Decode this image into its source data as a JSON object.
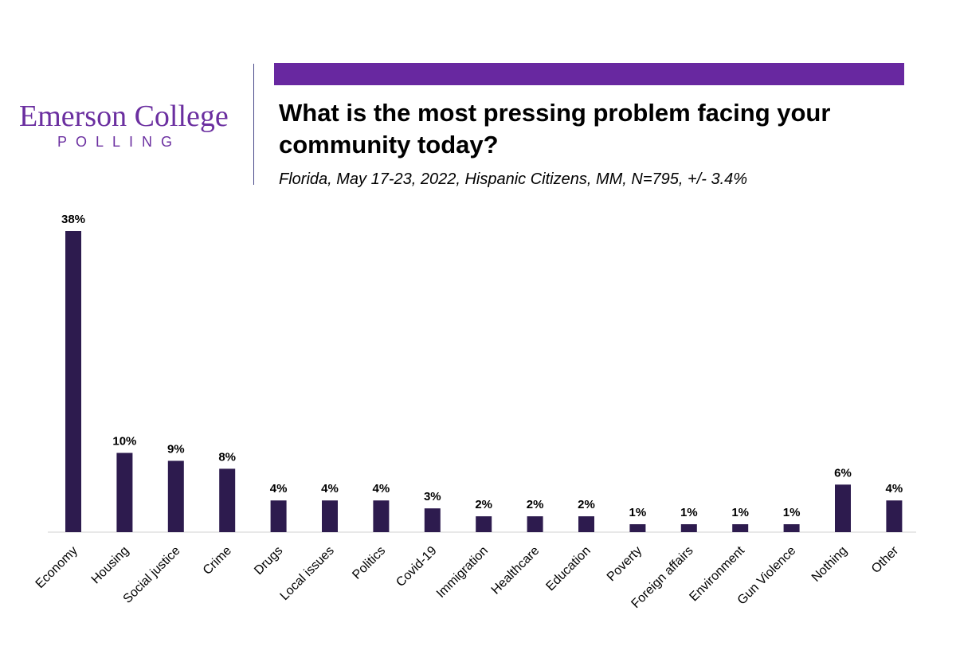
{
  "logo": {
    "name": "Emerson College",
    "sub": "POLLING"
  },
  "colors": {
    "brand": "#6b2fa0",
    "accent": "#6828a0",
    "bar": "#2d1b4e",
    "axis": "#d0d0d0"
  },
  "header": {
    "title": "What is the most pressing problem facing your community today?",
    "subtitle": "Florida, May 17-23, 2022, Hispanic Citizens, MM, N=795, +/- 3.4%"
  },
  "chart_data": {
    "type": "bar",
    "title": "What is the most pressing problem facing your community today?",
    "subtitle": "Florida, May 17-23, 2022, Hispanic Citizens, MM, N=795, +/- 3.4%",
    "categories": [
      "Economy",
      "Housing",
      "Social justice",
      "Crime",
      "Drugs",
      "Local issues",
      "Politics",
      "Covid-19",
      "Immigration",
      "Healthcare",
      "Education",
      "Poverty",
      "Foreign affairs",
      "Environment",
      "Gun Violence",
      "Nothing",
      "Other"
    ],
    "values": [
      38,
      10,
      9,
      8,
      4,
      4,
      4,
      3,
      2,
      2,
      2,
      1,
      1,
      1,
      1,
      6,
      4
    ],
    "data_labels": [
      "38%",
      "10%",
      "9%",
      "8%",
      "4%",
      "4%",
      "4%",
      "3%",
      "2%",
      "2%",
      "2%",
      "1%",
      "1%",
      "1%",
      "1%",
      "6%",
      "4%"
    ],
    "ylim": [
      0,
      38
    ],
    "grid": false,
    "legend": "none"
  }
}
